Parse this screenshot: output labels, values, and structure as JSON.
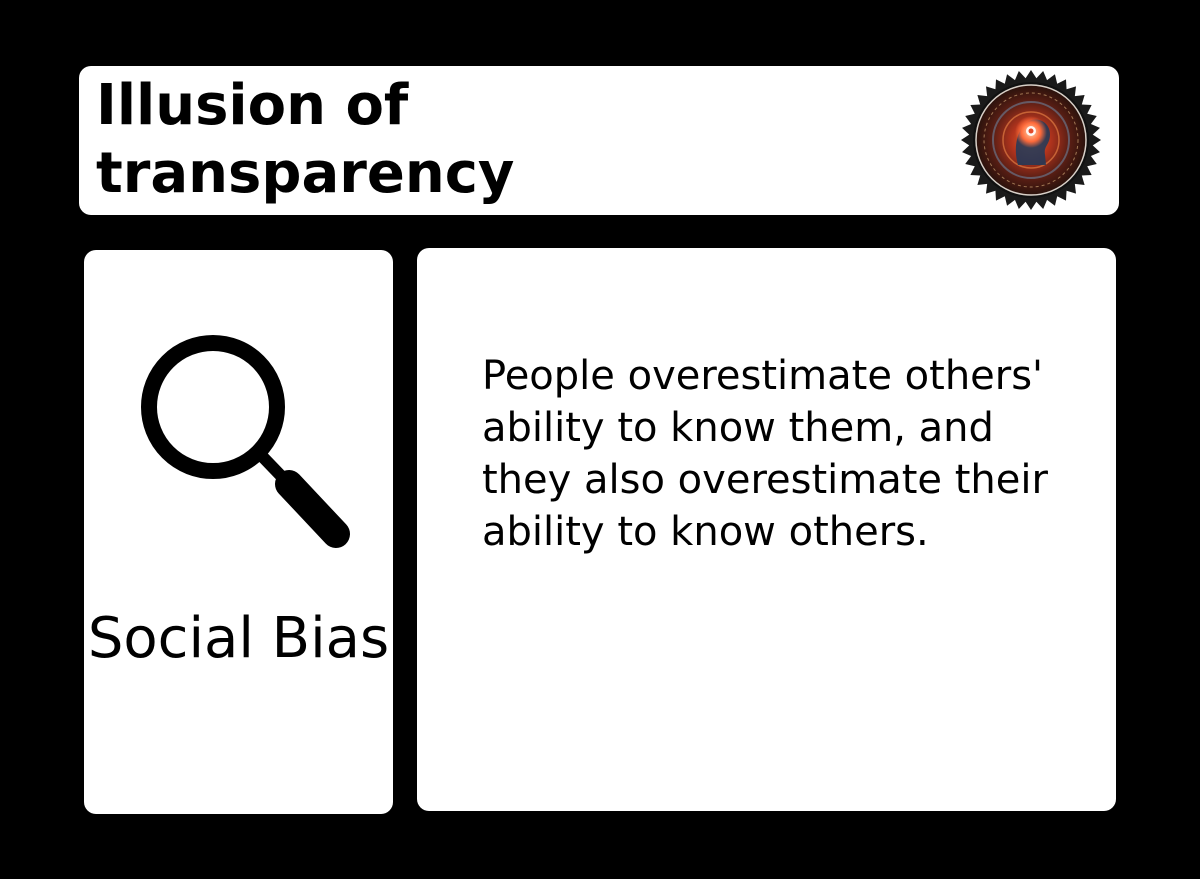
{
  "card": {
    "title": "Illusion of transparency",
    "category": "Social Bias",
    "description": "People overestimate others' ability to know them, and they also overestimate their ability to know others."
  },
  "icons": {
    "category_icon": "magnifying-glass-icon",
    "badge_icon": "cognitive-bias-seal-icon"
  },
  "colors": {
    "background": "#000000",
    "card": "#ffffff",
    "text": "#000000"
  }
}
